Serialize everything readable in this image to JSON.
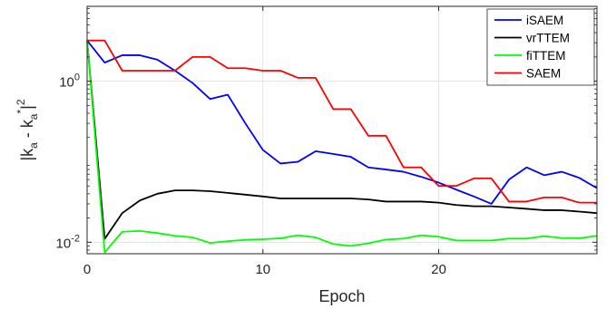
{
  "chart_data": {
    "type": "line",
    "title": "",
    "xlabel": "Epoch",
    "ylabel": "|k_a - k_a^*|^2",
    "xlim": [
      0,
      29
    ],
    "ylim": [
      0.0072,
      8.5
    ],
    "yscale": "log",
    "grid": true,
    "legend": "top-right",
    "xticks": [
      0,
      10,
      20
    ],
    "xtick_labels": [
      "0",
      "10",
      "20"
    ],
    "yticks": [
      0.01,
      1
    ],
    "ytick_labels": [
      {
        "base": "10",
        "exp": "-2"
      },
      {
        "base": "10",
        "exp": "0"
      }
    ],
    "x": [
      0,
      1,
      2,
      3,
      4,
      5,
      6,
      7,
      8,
      9,
      10,
      11,
      12,
      13,
      14,
      15,
      16,
      17,
      18,
      19,
      20,
      21,
      22,
      23,
      24,
      25,
      26,
      27,
      28,
      29
    ],
    "series": [
      {
        "name": "iSAEM",
        "color": "#0000ff",
        "values": [
          3.2,
          1.7,
          2.1,
          2.1,
          1.85,
          1.35,
          0.95,
          0.6,
          0.68,
          0.3,
          0.14,
          0.095,
          0.1,
          0.135,
          0.125,
          0.115,
          0.085,
          0.08,
          0.075,
          0.065,
          0.055,
          0.045,
          0.037,
          0.03,
          0.06,
          0.085,
          0.068,
          0.075,
          0.063,
          0.047
        ]
      },
      {
        "name": "vrTTEM",
        "color": "#000000",
        "values": [
          3.2,
          0.011,
          0.023,
          0.033,
          0.04,
          0.044,
          0.044,
          0.043,
          0.041,
          0.039,
          0.037,
          0.035,
          0.035,
          0.035,
          0.035,
          0.035,
          0.034,
          0.032,
          0.032,
          0.032,
          0.031,
          0.029,
          0.028,
          0.028,
          0.027,
          0.026,
          0.025,
          0.025,
          0.024,
          0.023
        ]
      },
      {
        "name": "fiTTEM",
        "color": "#00ff00",
        "values": [
          3.2,
          0.0075,
          0.0135,
          0.0138,
          0.013,
          0.012,
          0.0115,
          0.0098,
          0.0103,
          0.0107,
          0.0109,
          0.0112,
          0.0122,
          0.0115,
          0.0095,
          0.009,
          0.0097,
          0.0108,
          0.0111,
          0.0122,
          0.0117,
          0.0105,
          0.0105,
          0.0105,
          0.0111,
          0.0111,
          0.0119,
          0.0113,
          0.0112,
          0.012
        ]
      },
      {
        "name": "SAEM",
        "color": "#ff0000",
        "values": [
          3.2,
          3.2,
          1.35,
          1.35,
          1.35,
          1.35,
          2.0,
          2.0,
          1.45,
          1.45,
          1.35,
          1.35,
          1.1,
          1.1,
          0.45,
          0.45,
          0.21,
          0.21,
          0.085,
          0.085,
          0.05,
          0.05,
          0.062,
          0.062,
          0.032,
          0.032,
          0.036,
          0.036,
          0.031,
          0.031
        ]
      }
    ]
  }
}
